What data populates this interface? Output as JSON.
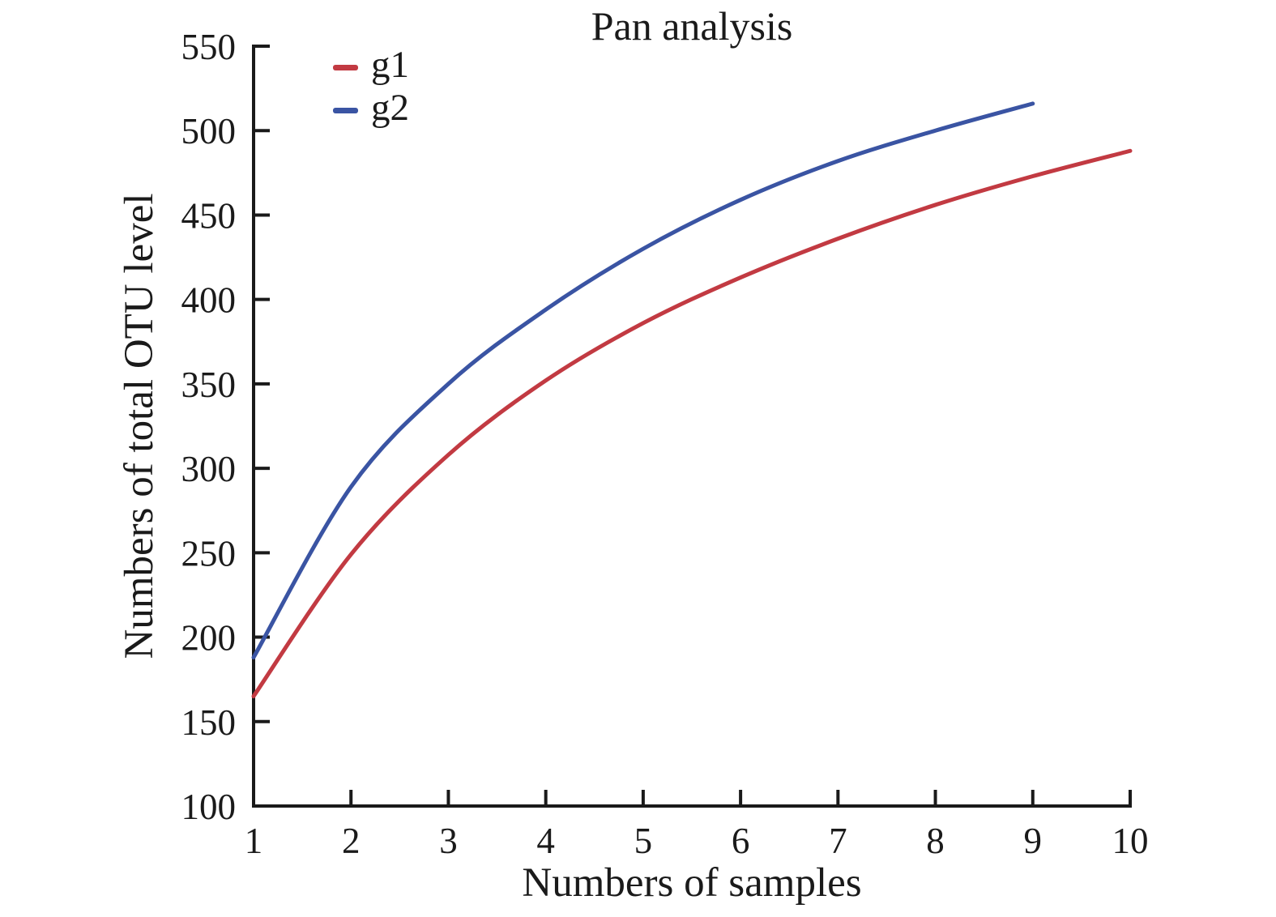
{
  "title": "Pan analysis",
  "axes_color": "#1a1a1a",
  "chart_data": {
    "type": "line",
    "title": "Pan analysis",
    "xlabel": "Numbers of samples",
    "ylabel": "Numbers of total OTU level",
    "xlim": [
      1,
      10
    ],
    "ylim": [
      100,
      550
    ],
    "xticks": [
      1,
      2,
      3,
      4,
      5,
      6,
      7,
      8,
      9,
      10
    ],
    "yticks": [
      100,
      150,
      200,
      250,
      300,
      350,
      400,
      450,
      500,
      550
    ],
    "grid": false,
    "legend_position": "upper left",
    "series": [
      {
        "name": "g1",
        "color": "#c23a42",
        "x": [
          1,
          2,
          3,
          4,
          5,
          6,
          7,
          8,
          9,
          10
        ],
        "values": [
          165,
          249,
          308,
          352,
          386,
          413,
          436,
          456,
          473,
          488
        ]
      },
      {
        "name": "g2",
        "color": "#3a54a3",
        "x": [
          1,
          2,
          3,
          4,
          5,
          6,
          7,
          8,
          9
        ],
        "values": [
          188,
          289,
          350,
          394,
          430,
          459,
          482,
          500,
          516
        ]
      }
    ]
  }
}
